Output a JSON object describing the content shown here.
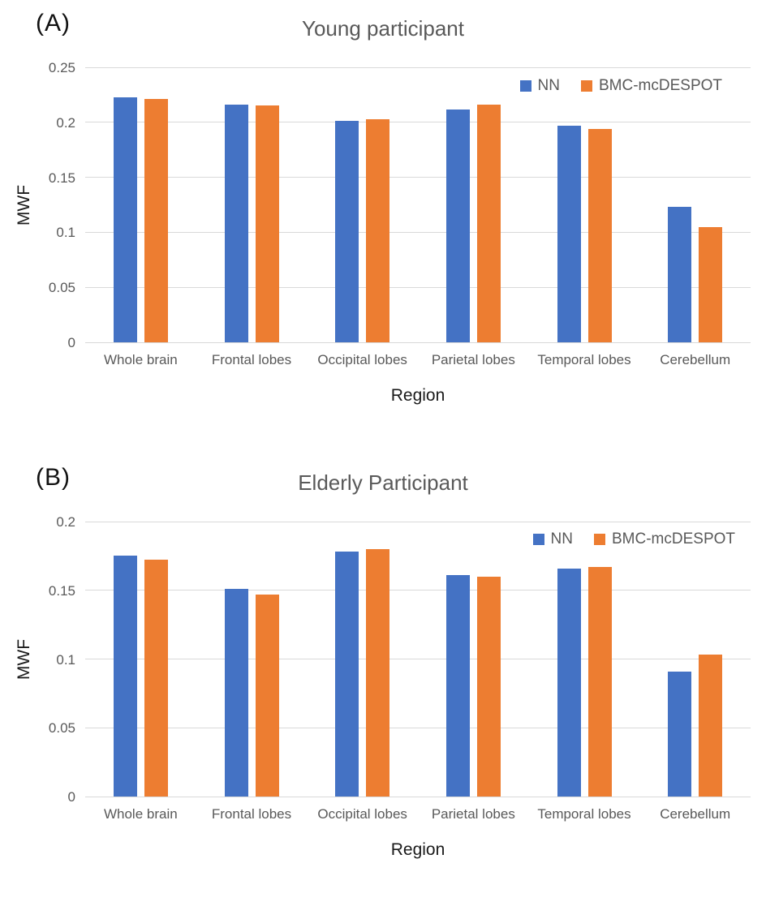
{
  "figure": {
    "background": "#ffffff",
    "gridline_color": "#d9d9d9",
    "series_colors": {
      "NN": "#4472C4",
      "BMC-mcDESPOT": "#ED7D31"
    }
  },
  "chart_data": [
    {
      "type": "bar",
      "panel_label": "(A)",
      "title": "Young participant",
      "xlabel": "Region",
      "ylabel": "MWF",
      "categories": [
        "Whole brain",
        "Frontal lobes",
        "Occipital lobes",
        "Parietal lobes",
        "Temporal lobes",
        "Cerebellum"
      ],
      "series": [
        {
          "name": "NN",
          "color": "#4472C4",
          "values": [
            0.223,
            0.216,
            0.201,
            0.212,
            0.197,
            0.123
          ]
        },
        {
          "name": "BMC-mcDESPOT",
          "color": "#ED7D31",
          "values": [
            0.221,
            0.215,
            0.203,
            0.216,
            0.194,
            0.105
          ]
        }
      ],
      "ylim": [
        0,
        0.25
      ],
      "yticks": [
        0,
        0.05,
        0.1,
        0.15,
        0.2,
        0.25
      ],
      "grid": true,
      "legend": [
        "NN",
        "BMC-mcDESPOT"
      ],
      "legend_position": "top-right"
    },
    {
      "type": "bar",
      "panel_label": "(B)",
      "title": "Elderly Participant",
      "xlabel": "Region",
      "ylabel": "MWF",
      "categories": [
        "Whole brain",
        "Frontal lobes",
        "Occipital lobes",
        "Parietal lobes",
        "Temporal lobes",
        "Cerebellum"
      ],
      "series": [
        {
          "name": "NN",
          "color": "#4472C4",
          "values": [
            0.175,
            0.151,
            0.178,
            0.161,
            0.166,
            0.091
          ]
        },
        {
          "name": "BMC-mcDESPOT",
          "color": "#ED7D31",
          "values": [
            0.172,
            0.147,
            0.18,
            0.16,
            0.167,
            0.103
          ]
        }
      ],
      "ylim": [
        0,
        0.2
      ],
      "yticks": [
        0,
        0.05,
        0.1,
        0.15,
        0.2
      ],
      "grid": true,
      "legend": [
        "NN",
        "BMC-mcDESPOT"
      ],
      "legend_position": "top-right"
    }
  ]
}
